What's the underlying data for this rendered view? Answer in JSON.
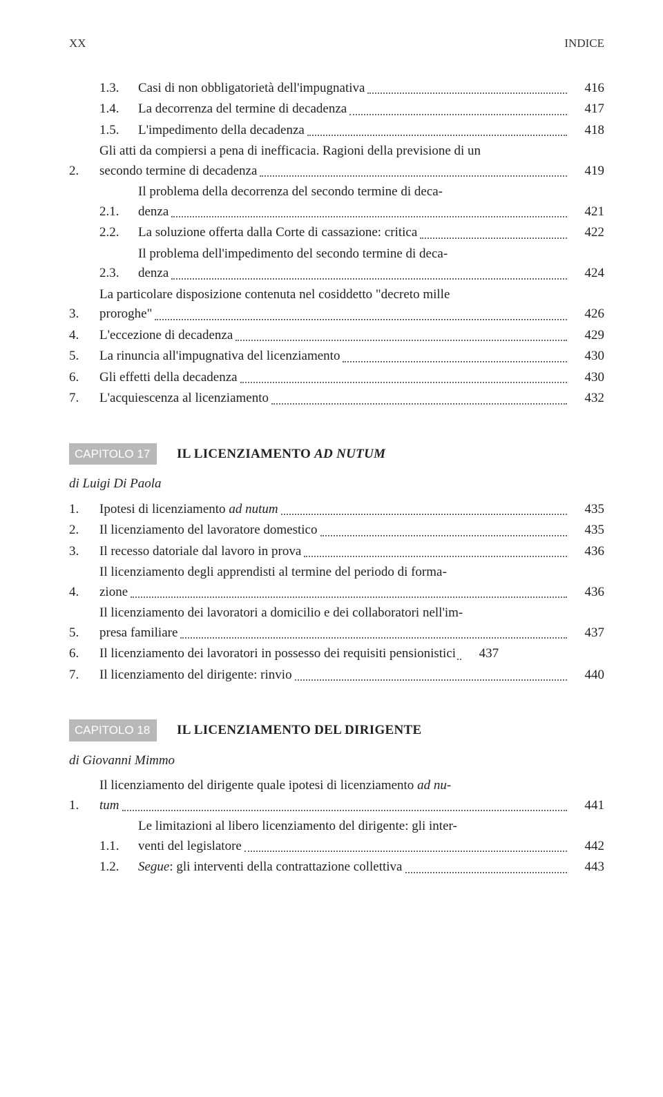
{
  "header": {
    "left": "XX",
    "right": "INDICE"
  },
  "section1": {
    "entries": [
      {
        "num": "1.3.",
        "text": "Casi di non obbligatorietà dell'impugnativa",
        "page": "416",
        "indent": "sub"
      },
      {
        "num": "1.4.",
        "text": "La decorrenza del termine di decadenza",
        "page": "417",
        "indent": "sub"
      },
      {
        "num": "1.5.",
        "text": "L'impedimento della decadenza",
        "page": "418",
        "indent": "sub"
      },
      {
        "num": "2.",
        "text_lines": [
          "Gli atti da compiersi a pena di inefficacia. Ragioni della previsione di un",
          "secondo termine di decadenza"
        ],
        "page": "419",
        "indent": "main"
      },
      {
        "num": "2.1.",
        "text_lines": [
          "Il problema della decorrenza del secondo termine di deca-",
          "denza"
        ],
        "page": "421",
        "indent": "sub"
      },
      {
        "num": "2.2.",
        "text": "La soluzione offerta dalla Corte di cassazione: critica",
        "page": "422",
        "indent": "sub"
      },
      {
        "num": "2.3.",
        "text_lines": [
          "Il problema dell'impedimento del secondo termine di deca-",
          "denza"
        ],
        "page": "424",
        "indent": "sub"
      },
      {
        "num": "3.",
        "text_lines": [
          "La particolare disposizione contenuta nel cosiddetto \"decreto mille",
          "proroghe\""
        ],
        "page": "426",
        "indent": "main"
      },
      {
        "num": "4.",
        "text": "L'eccezione di decadenza",
        "page": "429",
        "indent": "main"
      },
      {
        "num": "5.",
        "text": "La rinuncia all'impugnativa del licenziamento",
        "page": "430",
        "indent": "main"
      },
      {
        "num": "6.",
        "text": "Gli effetti della decadenza",
        "page": "430",
        "indent": "main"
      },
      {
        "num": "7.",
        "text": "L'acquiescenza al licenziamento",
        "page": "432",
        "indent": "main"
      }
    ]
  },
  "chapter17": {
    "badge": "CAPITOLO 17",
    "title_pre": "IL LICENZIAMENTO ",
    "title_ital": "AD NUTUM",
    "author": "di Luigi Di Paola",
    "entries": [
      {
        "num": "1.",
        "text_pre": "Ipotesi di licenziamento ",
        "text_ital": "ad nutum",
        "page": "435",
        "indent": "main"
      },
      {
        "num": "2.",
        "text": "Il licenziamento del lavoratore domestico",
        "page": "435",
        "indent": "main"
      },
      {
        "num": "3.",
        "text": "Il recesso datoriale dal lavoro in prova",
        "page": "436",
        "indent": "main"
      },
      {
        "num": "4.",
        "text_lines": [
          "Il licenziamento degli apprendisti al termine del periodo di forma-",
          "zione"
        ],
        "page": "436",
        "indent": "main"
      },
      {
        "num": "5.",
        "text_lines": [
          "Il licenziamento dei lavoratori a domicilio e dei collaboratori nell'im-",
          "presa familiare"
        ],
        "page": "437",
        "indent": "main"
      },
      {
        "num": "6.",
        "text": "Il licenziamento dei lavoratori in possesso dei requisiti pensionistici",
        "page": "437",
        "indent": "main",
        "short_leader": true
      },
      {
        "num": "7.",
        "text": "Il licenziamento del dirigente: rinvio",
        "page": "440",
        "indent": "main"
      }
    ]
  },
  "chapter18": {
    "badge": "CAPITOLO 18",
    "title": "IL LICENZIAMENTO DEL DIRIGENTE",
    "author": "di Giovanni Mimmo",
    "entries": [
      {
        "num": "1.",
        "text_lines_mixed": [
          {
            "pre": "Il licenziamento del dirigente quale ipotesi di licenziamento ",
            "ital": "ad nu-"
          },
          {
            "ital": "tum"
          }
        ],
        "page": "441",
        "indent": "main"
      },
      {
        "num": "1.1.",
        "text_lines": [
          "Le limitazioni al libero licenziamento del dirigente: gli inter-",
          "venti del legislatore"
        ],
        "page": "442",
        "indent": "sub"
      },
      {
        "num": "1.2.",
        "text_ital_pre": "Segue",
        "text_post": ": gli interventi della contrattazione collettiva",
        "page": "443",
        "indent": "sub"
      }
    ]
  }
}
